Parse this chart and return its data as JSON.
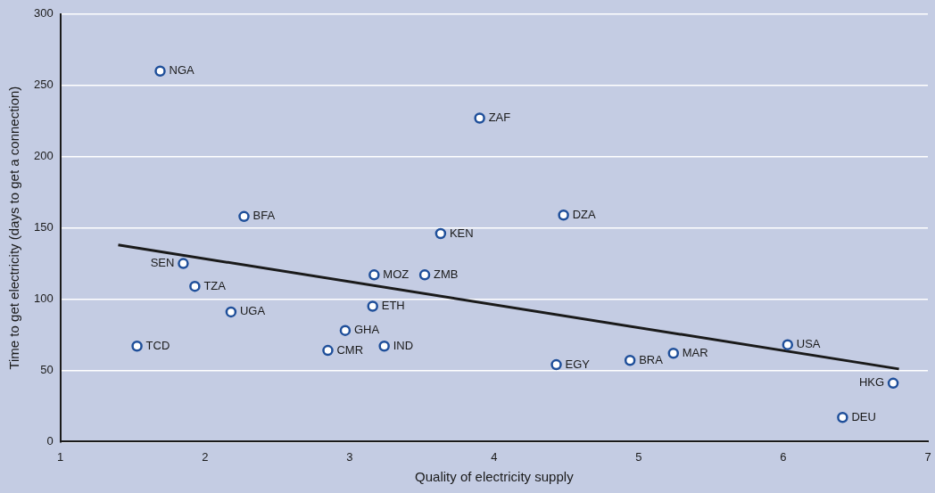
{
  "chart_data": {
    "type": "scatter",
    "xlabel": "Quality of electricity supply",
    "ylabel": "Time to get electricity (days to get a connection)",
    "xlim": [
      1,
      7
    ],
    "xticks": [
      1,
      2,
      3,
      4,
      5,
      6,
      7
    ],
    "ylim": [
      0,
      300
    ],
    "yticks": [
      0,
      50,
      100,
      150,
      200,
      250,
      300
    ],
    "grid": "y",
    "legend": false,
    "series": [
      {
        "marker": "circle",
        "color": "#1f4f9a",
        "x": [
          1.69,
          3.9,
          2.27,
          4.48,
          3.63,
          1.85,
          3.17,
          3.52,
          1.93,
          3.16,
          2.18,
          2.97,
          1.53,
          2.85,
          3.24,
          4.43,
          4.94,
          5.24,
          6.03,
          6.76,
          6.41
        ],
        "values": [
          260,
          227,
          158,
          159,
          146,
          125,
          117,
          117,
          109,
          95,
          91,
          78,
          67,
          64,
          67,
          54,
          57,
          62,
          68,
          41,
          17
        ]
      },
      {
        "type": "line",
        "marker": "none",
        "color": "#1a1a1a",
        "x": [
          1.4,
          6.8
        ],
        "values": [
          138,
          51
        ]
      }
    ],
    "annotations": [
      {
        "text": "NGA",
        "x": 1.69,
        "y": 260
      },
      {
        "text": "ZAF",
        "x": 3.9,
        "y": 227
      },
      {
        "text": "BFA",
        "x": 2.27,
        "y": 158
      },
      {
        "text": "DZA",
        "x": 4.48,
        "y": 159
      },
      {
        "text": "KEN",
        "x": 3.63,
        "y": 146
      },
      {
        "text": "SEN",
        "x": 1.85,
        "y": 125
      },
      {
        "text": "MOZ",
        "x": 3.17,
        "y": 117
      },
      {
        "text": "ZMB",
        "x": 3.52,
        "y": 117
      },
      {
        "text": "TZA",
        "x": 1.93,
        "y": 109
      },
      {
        "text": "ETH",
        "x": 3.16,
        "y": 95
      },
      {
        "text": "UGA",
        "x": 2.18,
        "y": 91
      },
      {
        "text": "GHA",
        "x": 2.97,
        "y": 78
      },
      {
        "text": "TCD",
        "x": 1.53,
        "y": 67
      },
      {
        "text": "CMR",
        "x": 2.85,
        "y": 64
      },
      {
        "text": "IND",
        "x": 3.24,
        "y": 67
      },
      {
        "text": "EGY",
        "x": 4.43,
        "y": 54
      },
      {
        "text": "BRA",
        "x": 4.94,
        "y": 57
      },
      {
        "text": "MAR",
        "x": 5.24,
        "y": 62
      },
      {
        "text": "USA",
        "x": 6.03,
        "y": 68
      },
      {
        "text": "HKG",
        "x": 6.76,
        "y": 41
      },
      {
        "text": "DEU",
        "x": 6.41,
        "y": 17
      }
    ]
  }
}
